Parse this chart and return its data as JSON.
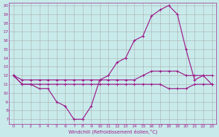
{
  "xlabel": "Windchill (Refroidissement éolien,°C)",
  "bg_color": "#c8eaea",
  "line_color": "#9b1a8a",
  "grid_color": "#aaaaaa",
  "hours": [
    0,
    1,
    2,
    3,
    4,
    5,
    6,
    7,
    8,
    9,
    10,
    11,
    12,
    13,
    14,
    15,
    16,
    17,
    18,
    19,
    20,
    21,
    22,
    23
  ],
  "windchill": [
    12,
    11,
    11,
    10.5,
    10.5,
    9,
    8.5,
    7,
    7,
    8.5,
    11.5,
    12,
    13.5,
    14,
    16,
    16.5,
    18.8,
    19.5,
    20,
    19,
    15,
    11.5,
    12,
    11
  ],
  "temp_upper": [
    12,
    11.5,
    11.5,
    11.5,
    11.5,
    11.5,
    11.5,
    11.5,
    11.5,
    11.5,
    11.5,
    11.5,
    11.5,
    11.5,
    11.5,
    12,
    12.5,
    12.5,
    12.5,
    12.5,
    12,
    12,
    12,
    12
  ],
  "temp_lower": [
    12,
    11,
    11,
    11,
    11,
    11,
    11,
    11,
    11,
    11,
    11,
    11,
    11,
    11,
    11,
    11,
    11,
    11,
    10.5,
    10.5,
    10.5,
    11,
    11,
    11
  ],
  "ylim_min": 6.5,
  "ylim_max": 20.3,
  "yticks": [
    7,
    8,
    9,
    10,
    11,
    12,
    13,
    14,
    15,
    16,
    17,
    18,
    19,
    20
  ],
  "xticks": [
    0,
    1,
    2,
    3,
    4,
    5,
    6,
    7,
    8,
    9,
    10,
    11,
    12,
    13,
    14,
    15,
    16,
    17,
    18,
    19,
    20,
    21,
    22,
    23
  ]
}
